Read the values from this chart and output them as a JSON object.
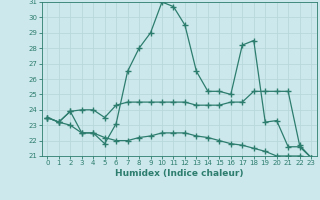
{
  "xlabel": "Humidex (Indice chaleur)",
  "x": [
    0,
    1,
    2,
    3,
    4,
    5,
    6,
    7,
    8,
    9,
    10,
    11,
    12,
    13,
    14,
    15,
    16,
    17,
    18,
    19,
    20,
    21,
    22,
    23
  ],
  "line1": [
    23.5,
    23.2,
    23.9,
    22.5,
    22.5,
    21.8,
    23.1,
    26.5,
    28.0,
    29.0,
    31.0,
    30.7,
    29.5,
    26.5,
    25.2,
    25.2,
    25.0,
    28.2,
    28.5,
    23.2,
    23.3,
    21.6,
    21.6,
    20.9
  ],
  "line2": [
    23.5,
    23.2,
    23.9,
    24.0,
    24.0,
    23.5,
    24.3,
    24.5,
    24.5,
    24.5,
    24.5,
    24.5,
    24.5,
    24.3,
    24.3,
    24.3,
    24.5,
    24.5,
    25.2,
    25.2,
    25.2,
    25.2,
    21.7,
    20.9
  ],
  "line3": [
    23.5,
    23.2,
    23.0,
    22.5,
    22.5,
    22.2,
    22.0,
    22.0,
    22.2,
    22.3,
    22.5,
    22.5,
    22.5,
    22.3,
    22.2,
    22.0,
    21.8,
    21.7,
    21.5,
    21.3,
    21.0,
    21.0,
    21.0,
    20.9
  ],
  "line_color": "#2d7d6e",
  "bg_color": "#cde8ec",
  "grid_color": "#b8d8dc",
  "ylim": [
    21,
    31
  ],
  "yticks": [
    21,
    22,
    23,
    24,
    25,
    26,
    27,
    28,
    29,
    30,
    31
  ],
  "xticks": [
    0,
    1,
    2,
    3,
    4,
    5,
    6,
    7,
    8,
    9,
    10,
    11,
    12,
    13,
    14,
    15,
    16,
    17,
    18,
    19,
    20,
    21,
    22,
    23
  ]
}
